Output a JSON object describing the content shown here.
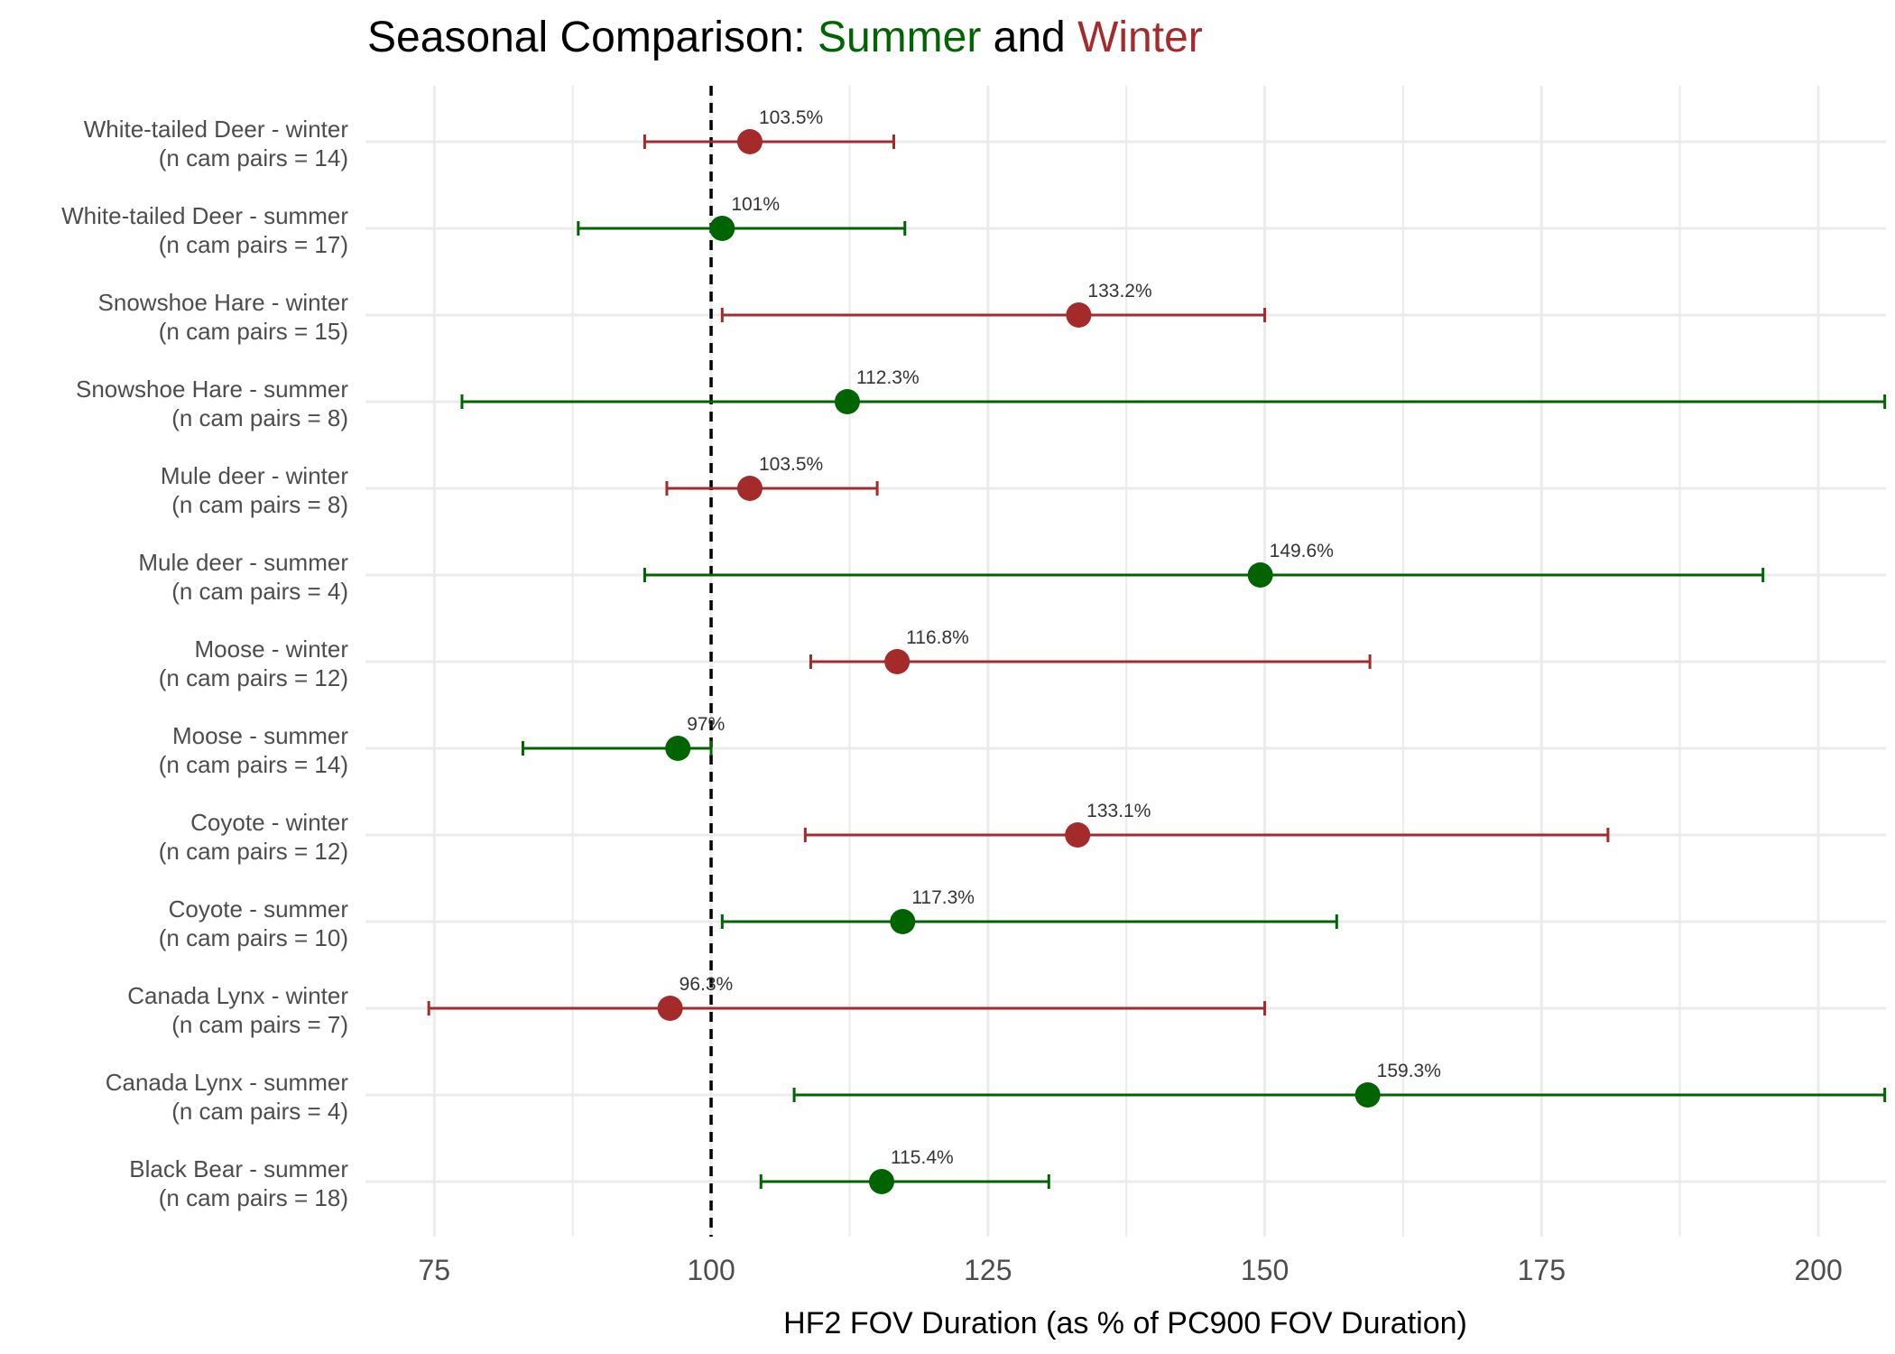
{
  "title": {
    "prefix": "Seasonal Comparison: ",
    "summer_word": "Summer",
    "connector": " and ",
    "winter_word": "Winter"
  },
  "colors": {
    "summer": "#006400",
    "winter": "#a52a2a",
    "grid": "#ebebeb",
    "reference_line": "#000000"
  },
  "chart_data": {
    "type": "scatter",
    "subtype": "point-range (dot with interval whiskers)",
    "title": "Seasonal Comparison: Summer and Winter",
    "xlabel": "HF2 FOV Duration (as % of PC900 FOV Duration)",
    "ylabel": "",
    "xlim": [
      69,
      206
    ],
    "x_ticks": [
      75,
      100,
      125,
      150,
      175,
      200
    ],
    "reference_line_x": 100,
    "grid": true,
    "legend": "none (season colors shown in title)",
    "rows": [
      {
        "line1": "White-tailed Deer - winter",
        "line2": "(n cam pairs = 14)",
        "season": "winter",
        "value": 103.5,
        "lower": 94,
        "upper": 116.5,
        "label": "103.5%"
      },
      {
        "line1": "White-tailed Deer - summer",
        "line2": "(n cam pairs = 17)",
        "season": "summer",
        "value": 101,
        "lower": 88,
        "upper": 117.5,
        "label": "101%"
      },
      {
        "line1": "Snowshoe Hare - winter",
        "line2": "(n cam pairs = 15)",
        "season": "winter",
        "value": 133.2,
        "lower": 101,
        "upper": 150,
        "label": "133.2%"
      },
      {
        "line1": "Snowshoe Hare - summer",
        "line2": "(n cam pairs = 8)",
        "season": "summer",
        "value": 112.3,
        "lower": 77.5,
        "upper": 206,
        "label": "112.3%"
      },
      {
        "line1": "Mule deer - winter",
        "line2": "(n cam pairs = 8)",
        "season": "winter",
        "value": 103.5,
        "lower": 96,
        "upper": 115,
        "label": "103.5%"
      },
      {
        "line1": "Mule deer - summer",
        "line2": "(n cam pairs = 4)",
        "season": "summer",
        "value": 149.6,
        "lower": 94,
        "upper": 195,
        "label": "149.6%"
      },
      {
        "line1": "Moose - winter",
        "line2": "(n cam pairs = 12)",
        "season": "winter",
        "value": 116.8,
        "lower": 109,
        "upper": 159.5,
        "label": "116.8%"
      },
      {
        "line1": "Moose - summer",
        "line2": "(n cam pairs = 14)",
        "season": "summer",
        "value": 97,
        "lower": 83,
        "upper": 100,
        "label": "97%"
      },
      {
        "line1": "Coyote - winter",
        "line2": "(n cam pairs = 12)",
        "season": "winter",
        "value": 133.1,
        "lower": 108.5,
        "upper": 181,
        "label": "133.1%"
      },
      {
        "line1": "Coyote - summer",
        "line2": "(n cam pairs = 10)",
        "season": "summer",
        "value": 117.3,
        "lower": 101,
        "upper": 156.5,
        "label": "117.3%"
      },
      {
        "line1": "Canada Lynx - winter",
        "line2": "(n cam pairs = 7)",
        "season": "winter",
        "value": 96.3,
        "lower": 74.5,
        "upper": 150,
        "label": "96.3%"
      },
      {
        "line1": "Canada Lynx - summer",
        "line2": "(n cam pairs = 4)",
        "season": "summer",
        "value": 159.3,
        "lower": 107.5,
        "upper": 206,
        "label": "159.3%"
      },
      {
        "line1": "Black Bear - summer",
        "line2": "(n cam pairs = 18)",
        "season": "summer",
        "value": 115.4,
        "lower": 104.5,
        "upper": 130.5,
        "label": "115.4%"
      }
    ]
  }
}
